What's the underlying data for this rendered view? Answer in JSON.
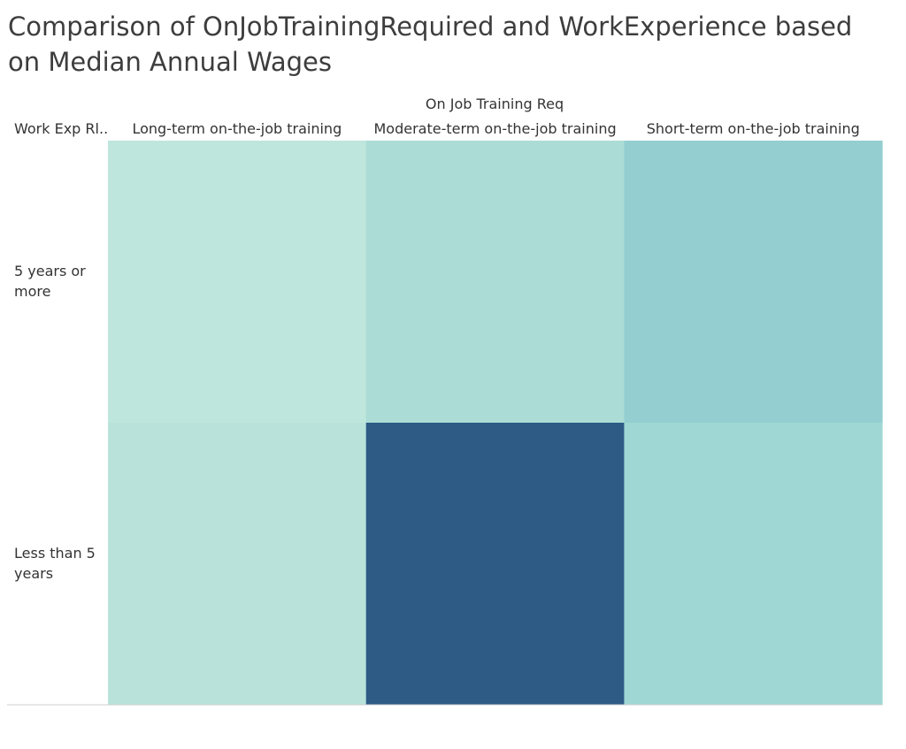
{
  "chart_data": {
    "type": "heatmap",
    "title": "Comparison of OnJobTrainingRequired and WorkExperience based on Median Annual Wages",
    "column_header": "On Job Training Req",
    "row_header": "Work Exp Rl..",
    "columns": [
      "Long-term on-the-job training",
      "Moderate-term on-the-job training",
      "Short-term on-the-job training"
    ],
    "rows": [
      "5 years or more",
      "Less than 5 years"
    ],
    "cell_colors": [
      [
        "#bee6dc",
        "#abdcd6",
        "#94ced0"
      ],
      [
        "#b9e3da",
        "#2d5b86",
        "#9fd7d4"
      ]
    ]
  }
}
